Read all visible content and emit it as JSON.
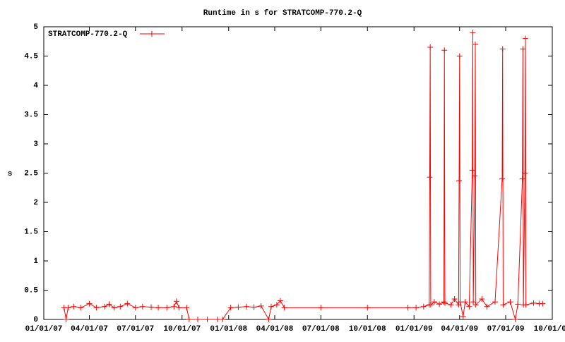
{
  "chart_data": {
    "type": "line",
    "title": "Runtime in s for STRATCOMP-770.2-Q",
    "y_label": "s",
    "legend_position": "top-left",
    "xlim": [
      "2007-01-01",
      "2009-10-01"
    ],
    "xticks": [
      {
        "value": "2007-01-01",
        "label": "01/01/07"
      },
      {
        "value": "2007-04-01",
        "label": "04/01/07"
      },
      {
        "value": "2007-07-01",
        "label": "07/01/07"
      },
      {
        "value": "2007-10-01",
        "label": "10/01/07"
      },
      {
        "value": "2008-01-01",
        "label": "01/01/08"
      },
      {
        "value": "2008-04-01",
        "label": "04/01/08"
      },
      {
        "value": "2008-07-01",
        "label": "07/01/08"
      },
      {
        "value": "2008-10-01",
        "label": "10/01/08"
      },
      {
        "value": "2009-01-01",
        "label": "01/01/09"
      },
      {
        "value": "2009-04-01",
        "label": "04/01/09"
      },
      {
        "value": "2009-07-01",
        "label": "07/01/09"
      },
      {
        "value": "2009-10-01",
        "label": "10/01/09"
      }
    ],
    "ylim": [
      0,
      5
    ],
    "yticks": [
      0,
      0.5,
      1,
      1.5,
      2,
      2.5,
      3,
      3.5,
      4,
      4.5,
      5
    ],
    "x": [
      "2007-02-10",
      "2007-02-14",
      "2007-02-18",
      "2007-03-01",
      "2007-03-15",
      "2007-04-01",
      "2007-04-15",
      "2007-05-01",
      "2007-05-10",
      "2007-05-20",
      "2007-06-01",
      "2007-06-15",
      "2007-07-01",
      "2007-07-15",
      "2007-08-01",
      "2007-08-15",
      "2007-09-01",
      "2007-09-15",
      "2007-09-20",
      "2007-09-25",
      "2007-10-10",
      "2007-10-15",
      "2007-11-01",
      "2007-11-20",
      "2007-12-10",
      "2007-12-20",
      "2008-01-05",
      "2008-01-20",
      "2008-02-05",
      "2008-02-20",
      "2008-03-05",
      "2008-03-20",
      "2008-03-25",
      "2008-04-05",
      "2008-04-12",
      "2008-04-20",
      "2008-07-01",
      "2008-10-01",
      "2008-12-20",
      "2009-01-05",
      "2009-01-20",
      "2009-01-31",
      "2009-02-01",
      "2009-02-02",
      "2009-02-03",
      "2009-02-10",
      "2009-02-20",
      "2009-03-01",
      "2009-03-02",
      "2009-03-03",
      "2009-03-15",
      "2009-03-22",
      "2009-03-30",
      "2009-03-31",
      "2009-04-01",
      "2009-04-02",
      "2009-04-08",
      "2009-04-12",
      "2009-04-20",
      "2009-04-26",
      "2009-04-27",
      "2009-04-28",
      "2009-05-01",
      "2009-05-02",
      "2009-05-03",
      "2009-05-15",
      "2009-05-25",
      "2009-06-10",
      "2009-06-24",
      "2009-06-25",
      "2009-06-26",
      "2009-07-10",
      "2009-07-20",
      "2009-07-25",
      "2009-08-03",
      "2009-08-04",
      "2009-08-05",
      "2009-08-08",
      "2009-08-09",
      "2009-08-10",
      "2009-08-25",
      "2009-09-05",
      "2009-09-12"
    ],
    "series": [
      {
        "name": "STRATCOMP-770.2-Q",
        "color": "#ff0000",
        "values": [
          0.2,
          0,
          0.2,
          0.22,
          0.2,
          0.27,
          0.2,
          0.22,
          0.26,
          0.2,
          0.22,
          0.27,
          0.2,
          0.22,
          0.21,
          0.2,
          0.2,
          0.22,
          0.31,
          0.2,
          0.2,
          0,
          0,
          0,
          0,
          0,
          0.2,
          0.21,
          0.22,
          0.21,
          0.23,
          0,
          0.22,
          0.25,
          0.32,
          0.2,
          0.2,
          0.2,
          0.2,
          0.2,
          0.22,
          0.25,
          2.43,
          4.65,
          0.25,
          0.3,
          0.26,
          0.3,
          4.6,
          0.28,
          0.25,
          0.35,
          0.25,
          2.37,
          4.5,
          0.3,
          0.05,
          0.3,
          0.22,
          2.55,
          4.9,
          0.3,
          2.45,
          4.7,
          0.25,
          0.35,
          0.22,
          0.3,
          2.4,
          4.62,
          0.25,
          0.3,
          0,
          0.26,
          2.4,
          4.62,
          0.25,
          2.5,
          4.8,
          0.25,
          0.28,
          0.27,
          0.27
        ]
      }
    ]
  }
}
